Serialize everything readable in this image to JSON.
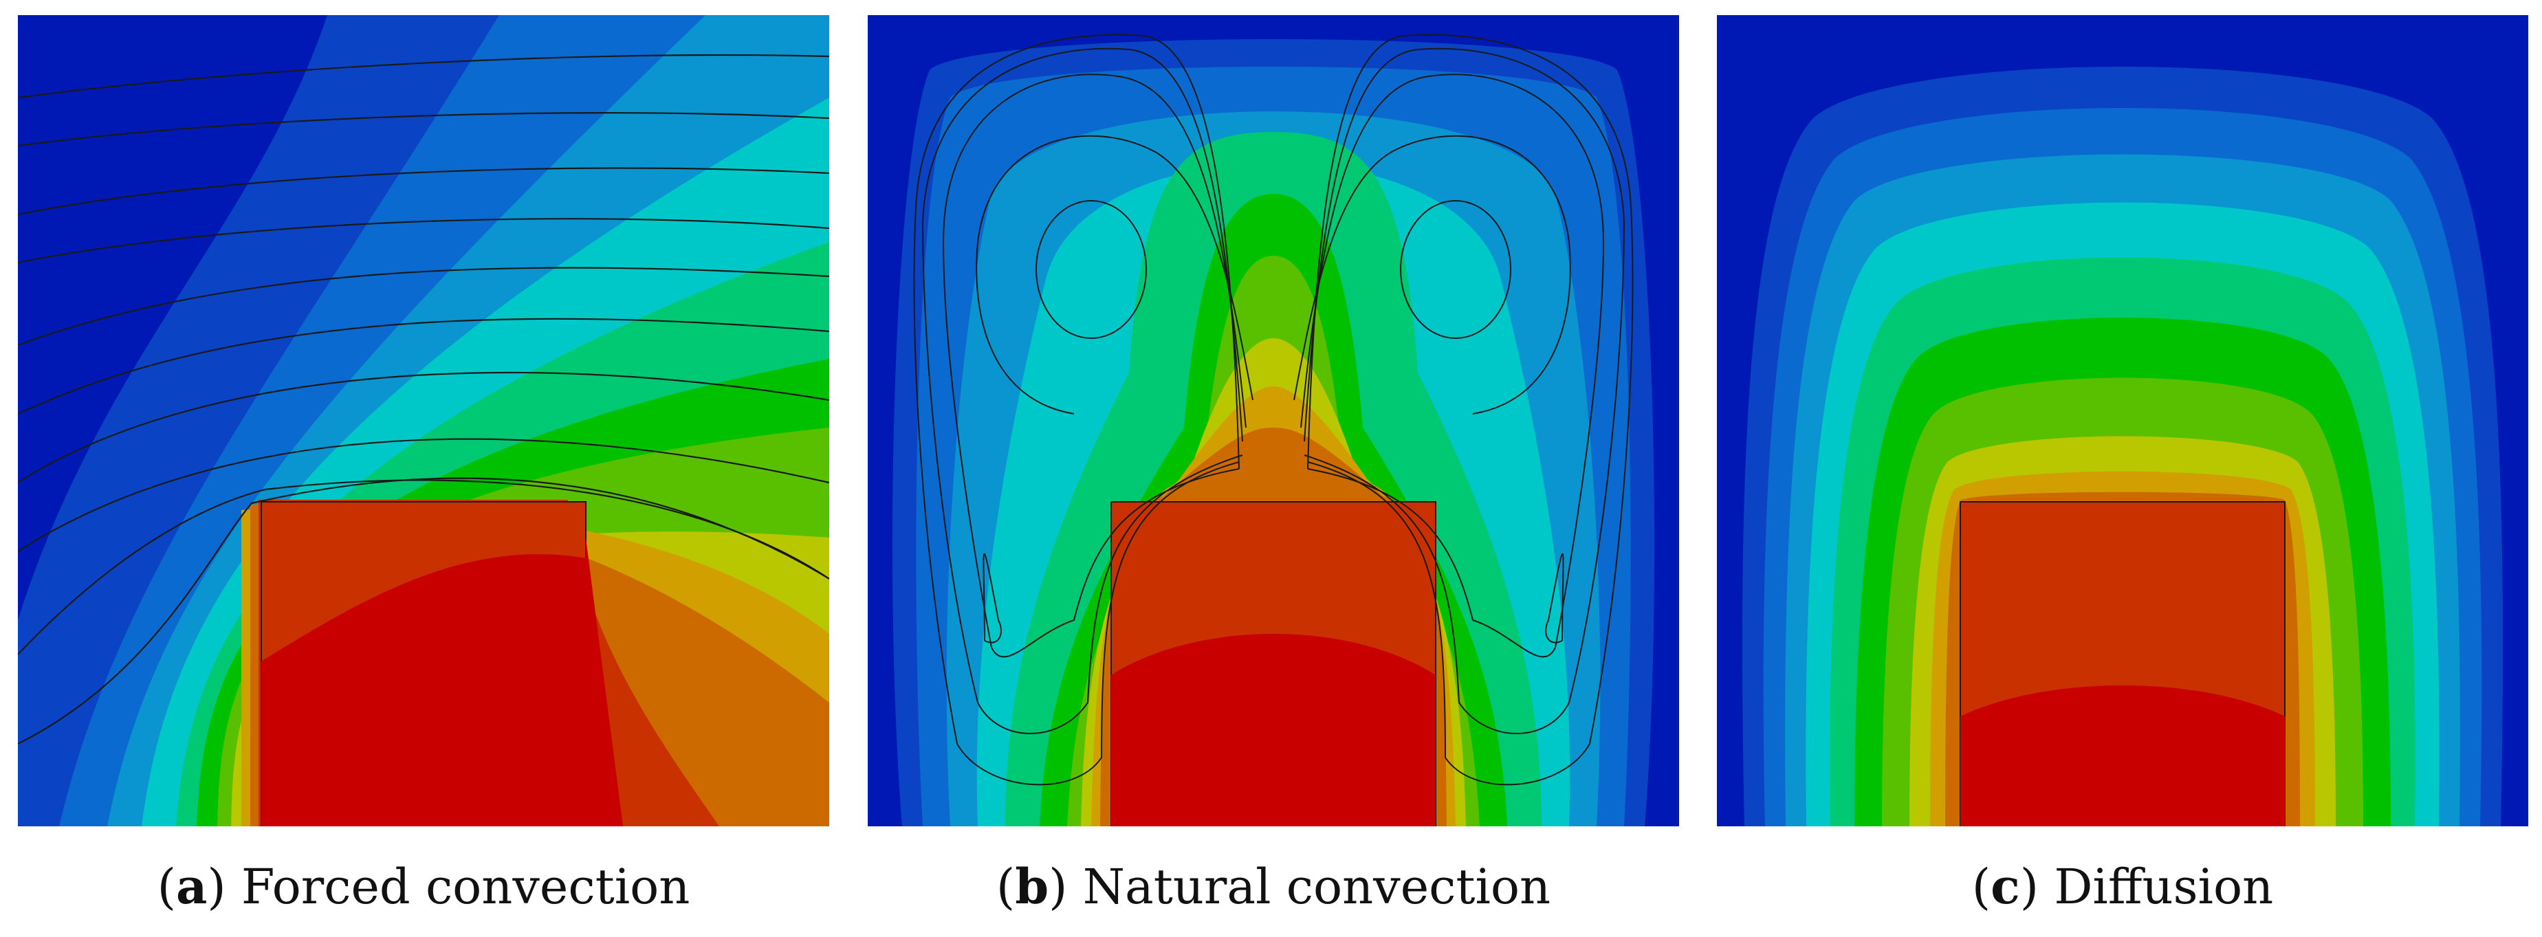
{
  "colors": {
    "colormap": [
      "#0019b4",
      "#0a44c4",
      "#0b6ad0",
      "#0a94d0",
      "#00c8c8",
      "#00c873",
      "#00c000",
      "#59c000",
      "#b8c700",
      "#d1a000",
      "#cc6a00",
      "#c93100",
      "#c80000"
    ],
    "heated_block": "#c80000",
    "streamline": "#1a1a1a"
  },
  "panels": [
    {
      "letter": "a",
      "title": "Forced convection",
      "paren_open": "(",
      "paren_close": ")"
    },
    {
      "letter": "b",
      "title": "Natural convection",
      "paren_open": "(",
      "paren_close": ")"
    },
    {
      "letter": "c",
      "title": "Diffusion",
      "paren_open": "(",
      "paren_close": ")"
    }
  ]
}
